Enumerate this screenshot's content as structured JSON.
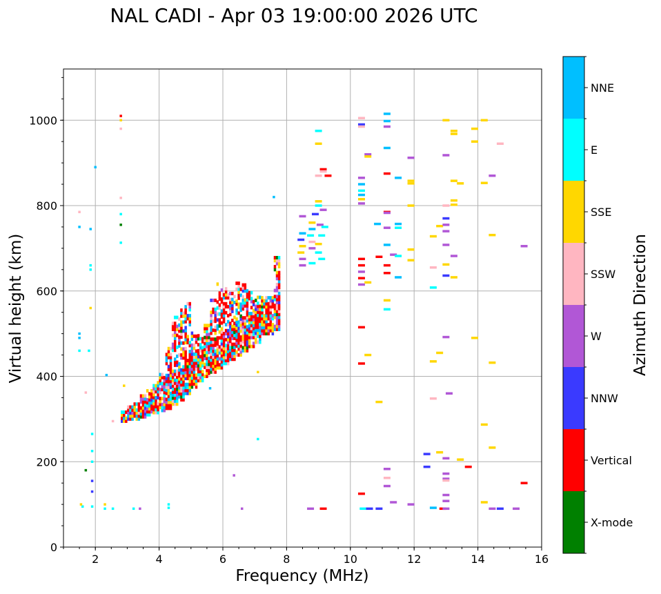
{
  "chart_data": {
    "type": "scatter",
    "title": "NAL CADI - Apr 03 19:00:00 2026 UTC",
    "xlabel": "Frequency (MHz)",
    "ylabel": "Virtual height (km)",
    "xlim": [
      1,
      16
    ],
    "ylim": [
      0,
      1120
    ],
    "x_ticks": [
      2,
      4,
      6,
      8,
      10,
      12,
      14,
      16
    ],
    "y_ticks": [
      0,
      200,
      400,
      600,
      800,
      1000
    ],
    "grid": true,
    "colorbar": {
      "label": "Azimuth Direction",
      "categories": [
        {
          "name": "X-mode",
          "color": "#008000"
        },
        {
          "name": "Vertical",
          "color": "#ff0000"
        },
        {
          "name": "NNW",
          "color": "#3a3aff"
        },
        {
          "name": "W",
          "color": "#b157d6"
        },
        {
          "name": "SSW",
          "color": "#ffb6c1"
        },
        {
          "name": "SSE",
          "color": "#ffd700"
        },
        {
          "name": "E",
          "color": "#00ffff"
        },
        {
          "name": "NNE",
          "color": "#00bfff"
        }
      ]
    },
    "trace_F": [
      {
        "f": 2.9,
        "hmin": 295,
        "hmax": 320
      },
      {
        "f": 3.1,
        "hmin": 300,
        "hmax": 330
      },
      {
        "f": 3.3,
        "hmin": 300,
        "hmax": 340
      },
      {
        "f": 3.5,
        "hmin": 305,
        "hmax": 355
      },
      {
        "f": 3.7,
        "hmin": 310,
        "hmax": 370
      },
      {
        "f": 3.9,
        "hmin": 315,
        "hmax": 390
      },
      {
        "f": 4.1,
        "hmin": 320,
        "hmax": 410
      },
      {
        "f": 4.3,
        "hmin": 325,
        "hmax": 470
      },
      {
        "f": 4.5,
        "hmin": 335,
        "hmax": 540
      },
      {
        "f": 4.7,
        "hmin": 345,
        "hmax": 560
      },
      {
        "f": 4.9,
        "hmin": 360,
        "hmax": 575
      },
      {
        "f": 5.1,
        "hmin": 375,
        "hmax": 510
      },
      {
        "f": 5.3,
        "hmin": 390,
        "hmax": 500
      },
      {
        "f": 5.5,
        "hmin": 400,
        "hmax": 520
      },
      {
        "f": 5.7,
        "hmin": 410,
        "hmax": 580
      },
      {
        "f": 5.9,
        "hmin": 420,
        "hmax": 620
      },
      {
        "f": 6.1,
        "hmin": 430,
        "hmax": 610
      },
      {
        "f": 6.3,
        "hmin": 440,
        "hmax": 600
      },
      {
        "f": 6.5,
        "hmin": 450,
        "hmax": 620
      },
      {
        "f": 6.7,
        "hmin": 460,
        "hmax": 615
      },
      {
        "f": 6.9,
        "hmin": 470,
        "hmax": 600
      },
      {
        "f": 7.1,
        "hmin": 480,
        "hmax": 590
      },
      {
        "f": 7.3,
        "hmin": 500,
        "hmax": 585
      },
      {
        "f": 7.5,
        "hmin": 500,
        "hmax": 600
      },
      {
        "f": 7.7,
        "hmin": 510,
        "hmax": 680
      }
    ],
    "points": [
      {
        "f": 1.6,
        "h": 95,
        "c": 6
      },
      {
        "f": 1.55,
        "h": 100,
        "c": 5
      },
      {
        "f": 1.5,
        "h": 460,
        "c": 6
      },
      {
        "f": 1.5,
        "h": 490,
        "c": 7
      },
      {
        "f": 1.5,
        "h": 500,
        "c": 7
      },
      {
        "f": 1.5,
        "h": 750,
        "c": 7
      },
      {
        "f": 1.5,
        "h": 785,
        "c": 4
      },
      {
        "f": 1.7,
        "h": 180,
        "c": 0
      },
      {
        "f": 1.7,
        "h": 362,
        "c": 4
      },
      {
        "f": 1.8,
        "h": 460,
        "c": 6
      },
      {
        "f": 1.85,
        "h": 650,
        "c": 6
      },
      {
        "f": 1.85,
        "h": 660,
        "c": 6
      },
      {
        "f": 1.85,
        "h": 745,
        "c": 7
      },
      {
        "f": 1.85,
        "h": 560,
        "c": 5
      },
      {
        "f": 1.9,
        "h": 95,
        "c": 6
      },
      {
        "f": 1.9,
        "h": 130,
        "c": 2
      },
      {
        "f": 1.9,
        "h": 155,
        "c": 2
      },
      {
        "f": 1.9,
        "h": 200,
        "c": 6
      },
      {
        "f": 1.9,
        "h": 225,
        "c": 6
      },
      {
        "f": 1.9,
        "h": 265,
        "c": 6
      },
      {
        "f": 2.0,
        "h": 890,
        "c": 7
      },
      {
        "f": 2.3,
        "h": 90,
        "c": 6
      },
      {
        "f": 2.3,
        "h": 100,
        "c": 5
      },
      {
        "f": 2.35,
        "h": 403,
        "c": 7
      },
      {
        "f": 2.55,
        "h": 90,
        "c": 6
      },
      {
        "f": 2.55,
        "h": 295,
        "c": 4
      },
      {
        "f": 2.8,
        "h": 713,
        "c": 6
      },
      {
        "f": 2.8,
        "h": 755,
        "c": 0
      },
      {
        "f": 2.8,
        "h": 780,
        "c": 6
      },
      {
        "f": 2.8,
        "h": 818,
        "c": 4
      },
      {
        "f": 2.8,
        "h": 980,
        "c": 4
      },
      {
        "f": 2.8,
        "h": 1000,
        "c": 5
      },
      {
        "f": 2.8,
        "h": 1010,
        "c": 1
      },
      {
        "f": 2.9,
        "h": 378,
        "c": 5
      },
      {
        "f": 3.2,
        "h": 90,
        "c": 6
      },
      {
        "f": 3.4,
        "h": 90,
        "c": 3
      },
      {
        "f": 4.3,
        "h": 92,
        "c": 6
      },
      {
        "f": 4.3,
        "h": 100,
        "c": 6
      },
      {
        "f": 5.6,
        "h": 372,
        "c": 7
      },
      {
        "f": 6.35,
        "h": 168,
        "c": 3
      },
      {
        "f": 6.6,
        "h": 90,
        "c": 3
      },
      {
        "f": 7.1,
        "h": 410,
        "c": 5
      },
      {
        "f": 7.1,
        "h": 253,
        "c": 6
      },
      {
        "f": 7.6,
        "h": 820,
        "c": 7
      },
      {
        "f": 8.5,
        "h": 775,
        "c": 3
      },
      {
        "f": 8.5,
        "h": 735,
        "c": 7
      },
      {
        "f": 8.45,
        "h": 720,
        "c": 2
      },
      {
        "f": 8.5,
        "h": 705,
        "c": 5
      },
      {
        "f": 8.45,
        "h": 690,
        "c": 5
      },
      {
        "f": 8.5,
        "h": 675,
        "c": 3
      },
      {
        "f": 8.5,
        "h": 660,
        "c": 3
      },
      {
        "f": 8.8,
        "h": 745,
        "c": 7
      },
      {
        "f": 8.8,
        "h": 760,
        "c": 5
      },
      {
        "f": 8.75,
        "h": 730,
        "c": 6
      },
      {
        "f": 8.8,
        "h": 715,
        "c": 4
      },
      {
        "f": 8.8,
        "h": 700,
        "c": 3
      },
      {
        "f": 8.8,
        "h": 665,
        "c": 6
      },
      {
        "f": 8.9,
        "h": 780,
        "c": 2
      },
      {
        "f": 9.0,
        "h": 975,
        "c": 6
      },
      {
        "f": 9.0,
        "h": 945,
        "c": 5
      },
      {
        "f": 9.0,
        "h": 870,
        "c": 4
      },
      {
        "f": 9.0,
        "h": 810,
        "c": 5
      },
      {
        "f": 9.0,
        "h": 800,
        "c": 6
      },
      {
        "f": 9.05,
        "h": 755,
        "c": 3
      },
      {
        "f": 9.1,
        "h": 730,
        "c": 6
      },
      {
        "f": 9.0,
        "h": 710,
        "c": 5
      },
      {
        "f": 9.0,
        "h": 690,
        "c": 6
      },
      {
        "f": 9.1,
        "h": 675,
        "c": 6
      },
      {
        "f": 9.15,
        "h": 885,
        "c": 1
      },
      {
        "f": 9.15,
        "h": 880,
        "c": 4
      },
      {
        "f": 9.15,
        "h": 790,
        "c": 3
      },
      {
        "f": 9.2,
        "h": 750,
        "c": 6
      },
      {
        "f": 9.3,
        "h": 870,
        "c": 1
      },
      {
        "f": 8.75,
        "h": 90,
        "c": 3
      },
      {
        "f": 9.15,
        "h": 90,
        "c": 1
      },
      {
        "f": 10.35,
        "h": 1005,
        "c": 4
      },
      {
        "f": 10.35,
        "h": 990,
        "c": 2
      },
      {
        "f": 10.35,
        "h": 985,
        "c": 4
      },
      {
        "f": 10.35,
        "h": 865,
        "c": 3
      },
      {
        "f": 10.35,
        "h": 850,
        "c": 7
      },
      {
        "f": 10.35,
        "h": 835,
        "c": 6
      },
      {
        "f": 10.35,
        "h": 825,
        "c": 7
      },
      {
        "f": 10.35,
        "h": 815,
        "c": 5
      },
      {
        "f": 10.35,
        "h": 805,
        "c": 3
      },
      {
        "f": 10.35,
        "h": 675,
        "c": 1
      },
      {
        "f": 10.35,
        "h": 660,
        "c": 1
      },
      {
        "f": 10.35,
        "h": 645,
        "c": 3
      },
      {
        "f": 10.35,
        "h": 630,
        "c": 1
      },
      {
        "f": 10.35,
        "h": 615,
        "c": 3
      },
      {
        "f": 10.35,
        "h": 515,
        "c": 1
      },
      {
        "f": 10.35,
        "h": 430,
        "c": 1
      },
      {
        "f": 10.35,
        "h": 125,
        "c": 1
      },
      {
        "f": 10.4,
        "h": 90,
        "c": 6
      },
      {
        "f": 10.55,
        "h": 920,
        "c": 3
      },
      {
        "f": 10.55,
        "h": 915,
        "c": 5
      },
      {
        "f": 10.55,
        "h": 620,
        "c": 5
      },
      {
        "f": 10.55,
        "h": 450,
        "c": 5
      },
      {
        "f": 10.6,
        "h": 90,
        "c": 2
      },
      {
        "f": 10.9,
        "h": 680,
        "c": 1
      },
      {
        "f": 10.9,
        "h": 340,
        "c": 5
      },
      {
        "f": 10.9,
        "h": 90,
        "c": 2
      },
      {
        "f": 10.85,
        "h": 757,
        "c": 7
      },
      {
        "f": 11.15,
        "h": 1015,
        "c": 7
      },
      {
        "f": 11.15,
        "h": 998,
        "c": 7
      },
      {
        "f": 11.15,
        "h": 985,
        "c": 3
      },
      {
        "f": 11.15,
        "h": 935,
        "c": 7
      },
      {
        "f": 11.15,
        "h": 875,
        "c": 1
      },
      {
        "f": 11.15,
        "h": 785,
        "c": 1
      },
      {
        "f": 11.15,
        "h": 783,
        "c": 3
      },
      {
        "f": 11.15,
        "h": 748,
        "c": 3
      },
      {
        "f": 11.15,
        "h": 708,
        "c": 7
      },
      {
        "f": 11.15,
        "h": 660,
        "c": 1
      },
      {
        "f": 11.15,
        "h": 642,
        "c": 1
      },
      {
        "f": 11.15,
        "h": 578,
        "c": 5
      },
      {
        "f": 11.15,
        "h": 557,
        "c": 6
      },
      {
        "f": 11.15,
        "h": 183,
        "c": 3
      },
      {
        "f": 11.15,
        "h": 162,
        "c": 4
      },
      {
        "f": 11.15,
        "h": 143,
        "c": 3
      },
      {
        "f": 11.35,
        "h": 105,
        "c": 3
      },
      {
        "f": 11.35,
        "h": 685,
        "c": 3
      },
      {
        "f": 11.5,
        "h": 865,
        "c": 7
      },
      {
        "f": 11.5,
        "h": 757,
        "c": 7
      },
      {
        "f": 11.5,
        "h": 748,
        "c": 6
      },
      {
        "f": 11.5,
        "h": 682,
        "c": 6
      },
      {
        "f": 11.5,
        "h": 632,
        "c": 7
      },
      {
        "f": 11.9,
        "h": 912,
        "c": 3
      },
      {
        "f": 11.9,
        "h": 858,
        "c": 5
      },
      {
        "f": 11.9,
        "h": 852,
        "c": 5
      },
      {
        "f": 11.9,
        "h": 800,
        "c": 5
      },
      {
        "f": 11.9,
        "h": 697,
        "c": 5
      },
      {
        "f": 11.9,
        "h": 672,
        "c": 5
      },
      {
        "f": 11.9,
        "h": 100,
        "c": 3
      },
      {
        "f": 12.4,
        "h": 218,
        "c": 2
      },
      {
        "f": 12.4,
        "h": 188,
        "c": 2
      },
      {
        "f": 12.6,
        "h": 728,
        "c": 5
      },
      {
        "f": 12.6,
        "h": 655,
        "c": 4
      },
      {
        "f": 12.6,
        "h": 608,
        "c": 6
      },
      {
        "f": 12.6,
        "h": 435,
        "c": 5
      },
      {
        "f": 12.6,
        "h": 348,
        "c": 4
      },
      {
        "f": 12.6,
        "h": 92,
        "c": 7
      },
      {
        "f": 12.8,
        "h": 752,
        "c": 5
      },
      {
        "f": 12.8,
        "h": 455,
        "c": 5
      },
      {
        "f": 12.8,
        "h": 222,
        "c": 5
      },
      {
        "f": 12.9,
        "h": 90,
        "c": 1
      },
      {
        "f": 13.0,
        "h": 1000,
        "c": 5
      },
      {
        "f": 13.0,
        "h": 918,
        "c": 3
      },
      {
        "f": 13.0,
        "h": 800,
        "c": 4
      },
      {
        "f": 13.0,
        "h": 770,
        "c": 2
      },
      {
        "f": 13.0,
        "h": 755,
        "c": 3
      },
      {
        "f": 13.0,
        "h": 740,
        "c": 3
      },
      {
        "f": 13.0,
        "h": 708,
        "c": 3
      },
      {
        "f": 13.0,
        "h": 662,
        "c": 5
      },
      {
        "f": 13.0,
        "h": 636,
        "c": 2
      },
      {
        "f": 13.0,
        "h": 492,
        "c": 3
      },
      {
        "f": 13.1,
        "h": 360,
        "c": 3
      },
      {
        "f": 13.0,
        "h": 208,
        "c": 3
      },
      {
        "f": 13.0,
        "h": 172,
        "c": 3
      },
      {
        "f": 13.0,
        "h": 160,
        "c": 3
      },
      {
        "f": 13.0,
        "h": 156,
        "c": 4
      },
      {
        "f": 13.0,
        "h": 122,
        "c": 3
      },
      {
        "f": 13.0,
        "h": 108,
        "c": 3
      },
      {
        "f": 13.0,
        "h": 90,
        "c": 3
      },
      {
        "f": 13.25,
        "h": 975,
        "c": 5
      },
      {
        "f": 13.25,
        "h": 968,
        "c": 5
      },
      {
        "f": 13.25,
        "h": 858,
        "c": 5
      },
      {
        "f": 13.25,
        "h": 812,
        "c": 5
      },
      {
        "f": 13.25,
        "h": 802,
        "c": 5
      },
      {
        "f": 13.25,
        "h": 682,
        "c": 3
      },
      {
        "f": 13.25,
        "h": 632,
        "c": 5
      },
      {
        "f": 13.45,
        "h": 852,
        "c": 5
      },
      {
        "f": 13.45,
        "h": 205,
        "c": 5
      },
      {
        "f": 13.7,
        "h": 188,
        "c": 1
      },
      {
        "f": 13.9,
        "h": 980,
        "c": 5
      },
      {
        "f": 13.9,
        "h": 950,
        "c": 5
      },
      {
        "f": 13.9,
        "h": 490,
        "c": 5
      },
      {
        "f": 14.2,
        "h": 1000,
        "c": 5
      },
      {
        "f": 14.2,
        "h": 853,
        "c": 5
      },
      {
        "f": 14.2,
        "h": 287,
        "c": 5
      },
      {
        "f": 14.2,
        "h": 105,
        "c": 5
      },
      {
        "f": 14.45,
        "h": 870,
        "c": 3
      },
      {
        "f": 14.45,
        "h": 731,
        "c": 5
      },
      {
        "f": 14.45,
        "h": 432,
        "c": 5
      },
      {
        "f": 14.45,
        "h": 233,
        "c": 5
      },
      {
        "f": 14.45,
        "h": 90,
        "c": 3
      },
      {
        "f": 14.7,
        "h": 90,
        "c": 2
      },
      {
        "f": 14.7,
        "h": 945,
        "c": 4
      },
      {
        "f": 15.2,
        "h": 90,
        "c": 3
      },
      {
        "f": 15.45,
        "h": 705,
        "c": 3
      },
      {
        "f": 15.45,
        "h": 150,
        "c": 1
      }
    ]
  }
}
